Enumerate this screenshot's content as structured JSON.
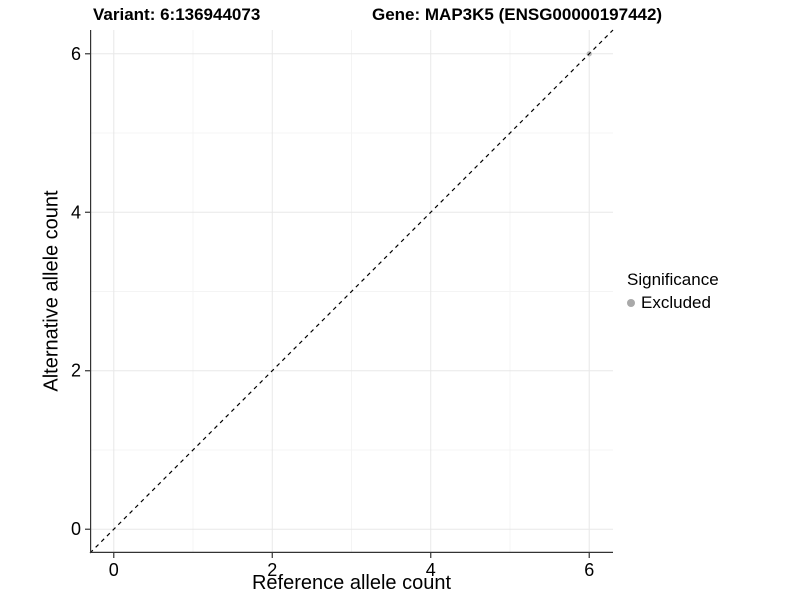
{
  "header": {
    "variant_title": "Variant: 6:136944073",
    "gene_title": "Gene: MAP3K5 (ENSG00000197442)"
  },
  "chart_data": {
    "type": "scatter",
    "xlabel": "Reference allele count",
    "ylabel": "Alternative allele count",
    "xlim": [
      -0.3,
      6.3
    ],
    "ylim": [
      -0.3,
      6.3
    ],
    "xticks": [
      0,
      2,
      4,
      6
    ],
    "yticks": [
      0,
      2,
      4,
      6
    ],
    "minor_ticks": [
      1,
      3,
      5
    ],
    "grid": true,
    "points": [
      {
        "x": 6,
        "y": 6,
        "series": "Excluded"
      }
    ],
    "series": [
      {
        "name": "Excluded",
        "color": "#bebebe"
      }
    ],
    "reference_line": {
      "type": "identity",
      "slope": 1,
      "intercept": 0,
      "style": "dashed",
      "color": "#000000"
    },
    "legend": {
      "position": "right",
      "title": "Significance",
      "items": [
        {
          "label": "Excluded",
          "color": "#a9a9a9"
        }
      ]
    }
  },
  "colors": {
    "background": "#ffffff",
    "grid_major": "#e8e8e8",
    "grid_minor": "#f4f4f4",
    "axis_line": "#333333",
    "text": "#000000"
  }
}
